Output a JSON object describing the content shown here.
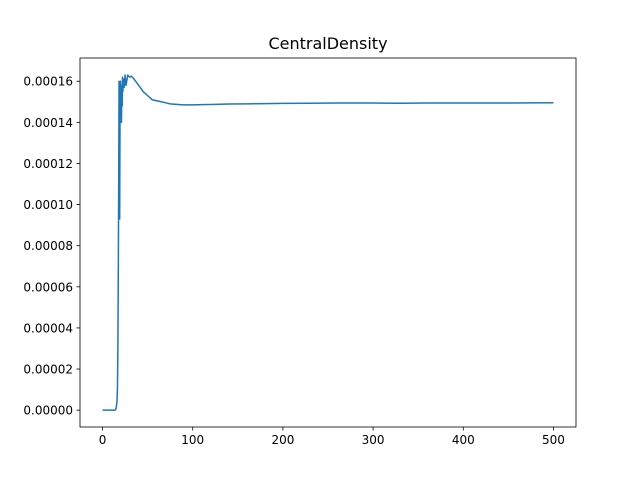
{
  "chart_data": {
    "type": "line",
    "title": "CentralDensity",
    "xlabel": "",
    "ylabel": "",
    "xlim": [
      -25,
      525
    ],
    "ylim": [
      -8.2e-06,
      0.0001713
    ],
    "xticks": [
      0,
      100,
      200,
      300,
      400,
      500
    ],
    "xtick_labels": [
      "0",
      "100",
      "200",
      "300",
      "400",
      "500"
    ],
    "yticks": [
      0,
      2e-05,
      4e-05,
      6e-05,
      8e-05,
      0.0001,
      0.00012,
      0.00014,
      0.00016
    ],
    "ytick_labels": [
      "0.00000",
      "0.00002",
      "0.00004",
      "0.00006",
      "0.00008",
      "0.00010",
      "0.00012",
      "0.00014",
      "0.00016"
    ],
    "grid": false,
    "series_color": "#1f77b4",
    "x": [
      0,
      5,
      10,
      14,
      15,
      16,
      16.5,
      17,
      17.5,
      18,
      18.3,
      18.6,
      19,
      19.3,
      19.6,
      20,
      20.3,
      20.6,
      21,
      21.4,
      21.8,
      22.2,
      22.6,
      23,
      24,
      25,
      26,
      28,
      30,
      32,
      35,
      40,
      45,
      50,
      55,
      60,
      65,
      70,
      75,
      80,
      90,
      100,
      110,
      120,
      140,
      160,
      180,
      200,
      230,
      260,
      300,
      330,
      360,
      400,
      450,
      500
    ],
    "y": [
      0.0,
      0.0,
      0.0,
      0.0,
      8e-07,
      4e-06,
      1e-05,
      3e-05,
      7e-05,
      0.00012,
      0.00016,
      0.00014,
      9.3e-05,
      0.000135,
      0.000158,
      0.00016,
      0.000148,
      0.000152,
      0.00014,
      0.000158,
      0.000148,
      0.000162,
      0.000155,
      0.000161,
      0.000157,
      0.000163,
      0.000158,
      0.000163,
      0.000162,
      0.0001625,
      0.000161,
      0.000158,
      0.000155,
      0.000153,
      0.000151,
      0.0001505,
      0.00015,
      0.0001495,
      0.000149,
      0.0001488,
      0.0001485,
      0.0001485,
      0.0001486,
      0.0001487,
      0.0001489,
      0.000149,
      0.0001491,
      0.0001492,
      0.0001493,
      0.0001494,
      0.0001494,
      0.0001493,
      0.0001494,
      0.0001494,
      0.0001494,
      0.0001495
    ]
  }
}
